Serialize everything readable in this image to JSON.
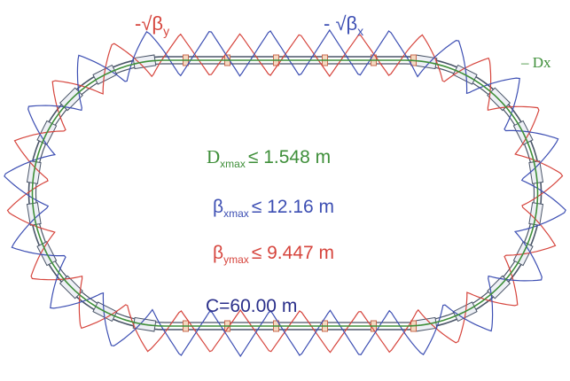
{
  "labels": {
    "beta_y_curve": {
      "prefix": "-√β",
      "sub": "y"
    },
    "beta_x_curve": {
      "prefix": "- √β",
      "sub": "x"
    },
    "dispersion_curve": "– Dx"
  },
  "stats": {
    "dxmax": {
      "sym": "D",
      "sub": "xmax",
      "rest": "≤ 1.548 m"
    },
    "betaxmax": {
      "sym": "β",
      "sub": "xmax",
      "rest": "≤ 12.16 m"
    },
    "betaymax": {
      "sym": "β",
      "sub": "ymax",
      "rest": "≤ 9.447 m"
    },
    "circumference": "C=60.00 m"
  },
  "colors": {
    "red": "#d6453d",
    "blue": "#3d4fb3",
    "green": "#3f8f3a",
    "navy": "#2a2f8a",
    "magnet_fill": "#f4d8c0",
    "magnet_stroke": "#c86a4f",
    "lattice": "#4a5568"
  }
}
